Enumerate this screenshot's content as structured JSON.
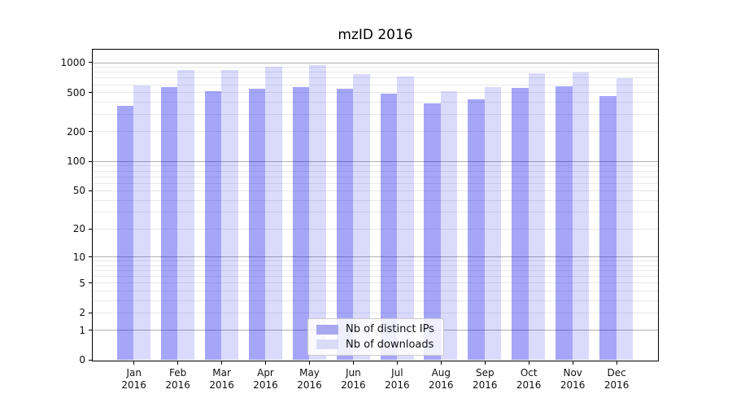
{
  "chart_data": {
    "type": "bar",
    "title": "mzID 2016",
    "categories": [
      "Jan",
      "Feb",
      "Mar",
      "Apr",
      "May",
      "Jun",
      "Jul",
      "Aug",
      "Sep",
      "Oct",
      "Nov",
      "Dec"
    ],
    "x_year_suffix": "2016",
    "series": [
      {
        "name": "Nb of distinct IPs",
        "color": "rgba(0,0,235,0.35)",
        "swatch_color": "#a8a8f0",
        "values": [
          360,
          565,
          515,
          545,
          565,
          545,
          480,
          385,
          425,
          550,
          575,
          455
        ]
      },
      {
        "name": "Nb of downloads",
        "color": "rgba(0,0,235,0.145)",
        "swatch_color": "#dbdbf8",
        "values": [
          585,
          830,
          840,
          905,
          940,
          755,
          715,
          510,
          565,
          770,
          785,
          690
        ]
      }
    ],
    "xlabel": "",
    "ylabel": "",
    "yscale": "log(value+1)",
    "ylim": [
      0,
      1340
    ],
    "yticks": [
      0,
      1,
      2,
      5,
      10,
      20,
      50,
      100,
      200,
      500,
      1000
    ],
    "major_gridlines": [
      1,
      10,
      100,
      1000
    ],
    "minor_gridlines": [
      2,
      3,
      4,
      5,
      6,
      7,
      8,
      9,
      20,
      30,
      40,
      50,
      60,
      70,
      80,
      90,
      200,
      300,
      400,
      500,
      600,
      700,
      800,
      900
    ],
    "grid": true,
    "legend_position": "inside-bottom-center"
  },
  "colors": {
    "bar_distinct_ips": "#a8a8f0",
    "bar_downloads": "#dbdbf8",
    "grid_major": "#b0b0b0",
    "grid_minor": "#e9e9e9",
    "axis_frame": "#000000",
    "legend_border": "#cccccc"
  }
}
